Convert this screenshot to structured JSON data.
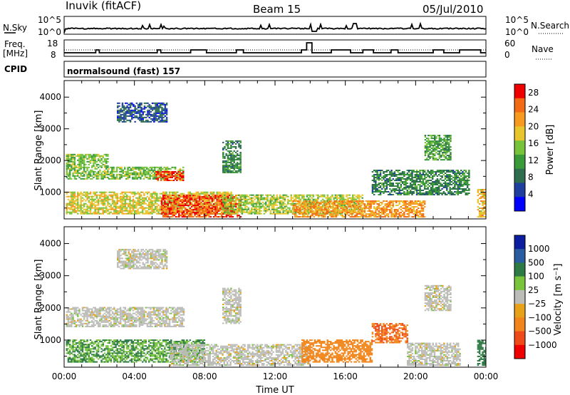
{
  "header": {
    "station": "Inuvik (fitACF)",
    "beam": "Beam 15",
    "date": "05/Jul/2010"
  },
  "top_panels": {
    "nsky_label": "N.Sky",
    "nsky_ticks": [
      "10^5",
      "10^0"
    ],
    "nsearch_label": "N.Search",
    "nsearch_ticks": [
      "10^5",
      "10^0"
    ],
    "freq_label": "Freq.",
    "freq_unit": "[MHz]",
    "freq_ticks": [
      "18",
      "8"
    ],
    "nave_label": "Nave",
    "nave_ticks": [
      "60",
      "0"
    ],
    "cpid_label": "CPID",
    "cpid_value": "normalsound (fast) 157"
  },
  "colors": {
    "power": [
      "#0000ff",
      "#1f3f9f",
      "#2e6e4e",
      "#3a9a3a",
      "#77c33a",
      "#e8c52a",
      "#f79a1e",
      "#f26a14",
      "#ee0000"
    ],
    "velocity": [
      "#0b1ea0",
      "#2a5da0",
      "#2e7a44",
      "#78c43c",
      "#bcbcb8",
      "#e8a21a",
      "#f2851a",
      "#ee4a1a",
      "#ee0000"
    ]
  },
  "chart_data": [
    {
      "type": "heatmap",
      "title": "Power",
      "xlabel": "",
      "ylabel": "Slant Range [km]",
      "xlim": [
        "00:00",
        "24:00"
      ],
      "ylim": [
        180,
        4500
      ],
      "x_ticks": [
        "00:00",
        "04:00",
        "08:00",
        "12:00",
        "16:00",
        "20:00",
        "00:00"
      ],
      "y_ticks": [
        "1000",
        "2000",
        "3000",
        "4000"
      ],
      "colorbar": {
        "label": "Power [dB]",
        "ticks": [
          "4",
          "8",
          "12",
          "16",
          "20",
          "24",
          "28"
        ],
        "range": [
          0,
          30
        ]
      },
      "regions": [
        {
          "t": [
            0.1,
            2.5
          ],
          "r": [
            1400,
            2200
          ],
          "value": 14
        },
        {
          "t": [
            2.5,
            6.8
          ],
          "r": [
            1400,
            1800
          ],
          "value": 14
        },
        {
          "t": [
            5.2,
            6.8
          ],
          "r": [
            1350,
            1650
          ],
          "value": 26
        },
        {
          "t": [
            3.0,
            5.8
          ],
          "r": [
            3200,
            3800
          ],
          "value": 6
        },
        {
          "t": [
            0.1,
            9.5
          ],
          "r": [
            300,
            1000
          ],
          "value": 18
        },
        {
          "t": [
            5.5,
            10.0
          ],
          "r": [
            200,
            900
          ],
          "value": 26
        },
        {
          "t": [
            9.0,
            17.0
          ],
          "r": [
            300,
            900
          ],
          "value": 16
        },
        {
          "t": [
            13.0,
            20.5
          ],
          "r": [
            200,
            700
          ],
          "value": 22
        },
        {
          "t": [
            9.0,
            10.0
          ],
          "r": [
            1600,
            2600
          ],
          "value": 10
        },
        {
          "t": [
            17.5,
            23.0
          ],
          "r": [
            900,
            1700
          ],
          "value": 10
        },
        {
          "t": [
            20.5,
            22.0
          ],
          "r": [
            2000,
            2800
          ],
          "value": 12
        },
        {
          "t": [
            23.5,
            24.0
          ],
          "r": [
            200,
            1100
          ],
          "value": 20
        }
      ]
    },
    {
      "type": "heatmap",
      "title": "Velocity",
      "xlabel": "Time UT",
      "ylabel": "Slant Range [km]",
      "xlim": [
        "00:00",
        "24:00"
      ],
      "ylim": [
        180,
        4500
      ],
      "x_ticks": [
        "00:00",
        "04:00",
        "08:00",
        "12:00",
        "16:00",
        "20:00",
        "00:00"
      ],
      "y_ticks": [
        "1000",
        "2000",
        "3000",
        "4000"
      ],
      "colorbar": {
        "label": "Velocity [m s⁻¹]",
        "ticks": [
          "1000",
          "500",
          "100",
          "25",
          "−25",
          "−100",
          "−500",
          "−1000"
        ]
      },
      "regions": [
        {
          "t": [
            0.1,
            6.8
          ],
          "r": [
            1400,
            2000
          ],
          "value": 0
        },
        {
          "t": [
            3.0,
            5.8
          ],
          "r": [
            3200,
            3800
          ],
          "value": 0
        },
        {
          "t": [
            0.1,
            8.0
          ],
          "r": [
            300,
            1000
          ],
          "value": 60
        },
        {
          "t": [
            6.0,
            14.0
          ],
          "r": [
            200,
            850
          ],
          "value": 0
        },
        {
          "t": [
            9.0,
            10.0
          ],
          "r": [
            1500,
            2600
          ],
          "value": 0
        },
        {
          "t": [
            13.5,
            17.5
          ],
          "r": [
            300,
            1000
          ],
          "value": -200
        },
        {
          "t": [
            17.5,
            19.5
          ],
          "r": [
            900,
            1500
          ],
          "value": -300
        },
        {
          "t": [
            19.5,
            22.5
          ],
          "r": [
            200,
            900
          ],
          "value": 0
        },
        {
          "t": [
            20.5,
            22.0
          ],
          "r": [
            1900,
            2700
          ],
          "value": 0
        },
        {
          "t": [
            23.5,
            24.0
          ],
          "r": [
            200,
            1000
          ],
          "value": 150
        }
      ]
    }
  ]
}
